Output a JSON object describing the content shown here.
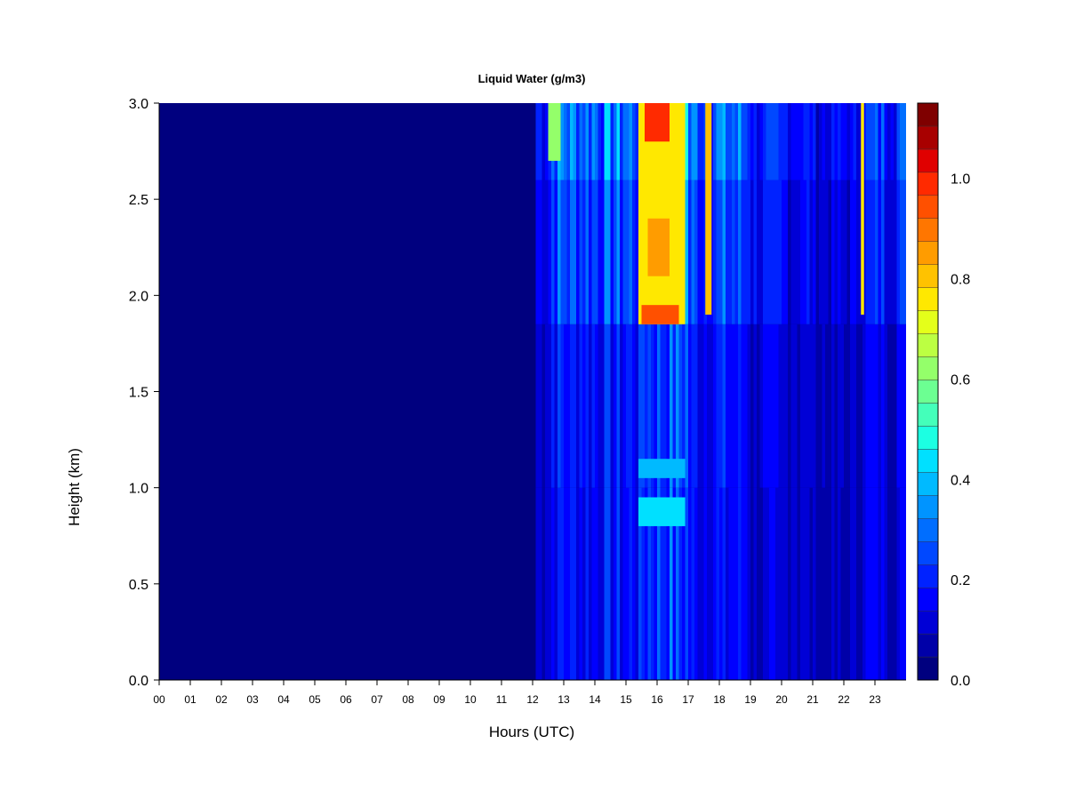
{
  "chart_data": {
    "type": "heatmap",
    "title": "Liquid Water (g/m3)",
    "xlabel": "Hours (UTC)",
    "ylabel": "Height (km)",
    "xlim": [
      0,
      24
    ],
    "ylim": [
      0,
      3
    ],
    "x_ticks": [
      "00",
      "01",
      "02",
      "03",
      "04",
      "05",
      "06",
      "07",
      "08",
      "09",
      "10",
      "11",
      "12",
      "13",
      "14",
      "15",
      "16",
      "17",
      "18",
      "19",
      "20",
      "21",
      "22",
      "23"
    ],
    "y_ticks": [
      "0.0",
      "0.5",
      "1.0",
      "1.5",
      "2.0",
      "2.5",
      "3.0"
    ],
    "colorbar": {
      "range": [
        0,
        1.15
      ],
      "ticks": [
        "0.0",
        "0.2",
        "0.4",
        "0.6",
        "0.8",
        "1.0"
      ],
      "levels": [
        0.0,
        0.05,
        0.1,
        0.15,
        0.2,
        0.25,
        0.3,
        0.35,
        0.4,
        0.45,
        0.5,
        0.55,
        0.6,
        0.65,
        0.7,
        0.75,
        0.8,
        0.85,
        0.9,
        0.95,
        1.0,
        1.05,
        1.1,
        1.15
      ],
      "colors": [
        "#00007f",
        "#0000a8",
        "#0000d6",
        "#0000ff",
        "#0022ff",
        "#0048ff",
        "#006eff",
        "#0094ff",
        "#00baff",
        "#00e0ff",
        "#1cffe2",
        "#44ffba",
        "#6cff92",
        "#94ff6a",
        "#bcff42",
        "#e4ff1a",
        "#ffe800",
        "#ffc200",
        "#ff9c00",
        "#ff7600",
        "#ff5000",
        "#ff2a00",
        "#e00000",
        "#a80000",
        "#7f0000"
      ]
    },
    "features": [
      {
        "time_start": 12.5,
        "time_end": 12.9,
        "height_min": 2.7,
        "height_max": 3.0,
        "value": 0.6
      },
      {
        "time_start": 15.4,
        "time_end": 16.9,
        "height_min": 1.85,
        "height_max": 3.0,
        "value": 0.75
      },
      {
        "time_start": 15.5,
        "time_end": 16.7,
        "height_min": 1.85,
        "height_max": 1.95,
        "value": 0.95
      },
      {
        "time_start": 15.6,
        "time_end": 16.4,
        "height_min": 2.8,
        "height_max": 3.0,
        "value": 1.0
      },
      {
        "time_start": 15.7,
        "time_end": 16.4,
        "height_min": 2.1,
        "height_max": 2.4,
        "value": 0.85
      },
      {
        "time_start": 17.55,
        "time_end": 17.75,
        "height_min": 1.9,
        "height_max": 3.0,
        "value": 0.8
      },
      {
        "time_start": 15.4,
        "time_end": 16.9,
        "height_min": 0.8,
        "height_max": 0.95,
        "value": 0.45
      },
      {
        "time_start": 15.4,
        "time_end": 16.9,
        "height_min": 1.05,
        "height_max": 1.15,
        "value": 0.4
      },
      {
        "time_start": 22.55,
        "time_end": 22.65,
        "height_min": 1.9,
        "height_max": 3.0,
        "value": 0.75
      }
    ]
  }
}
